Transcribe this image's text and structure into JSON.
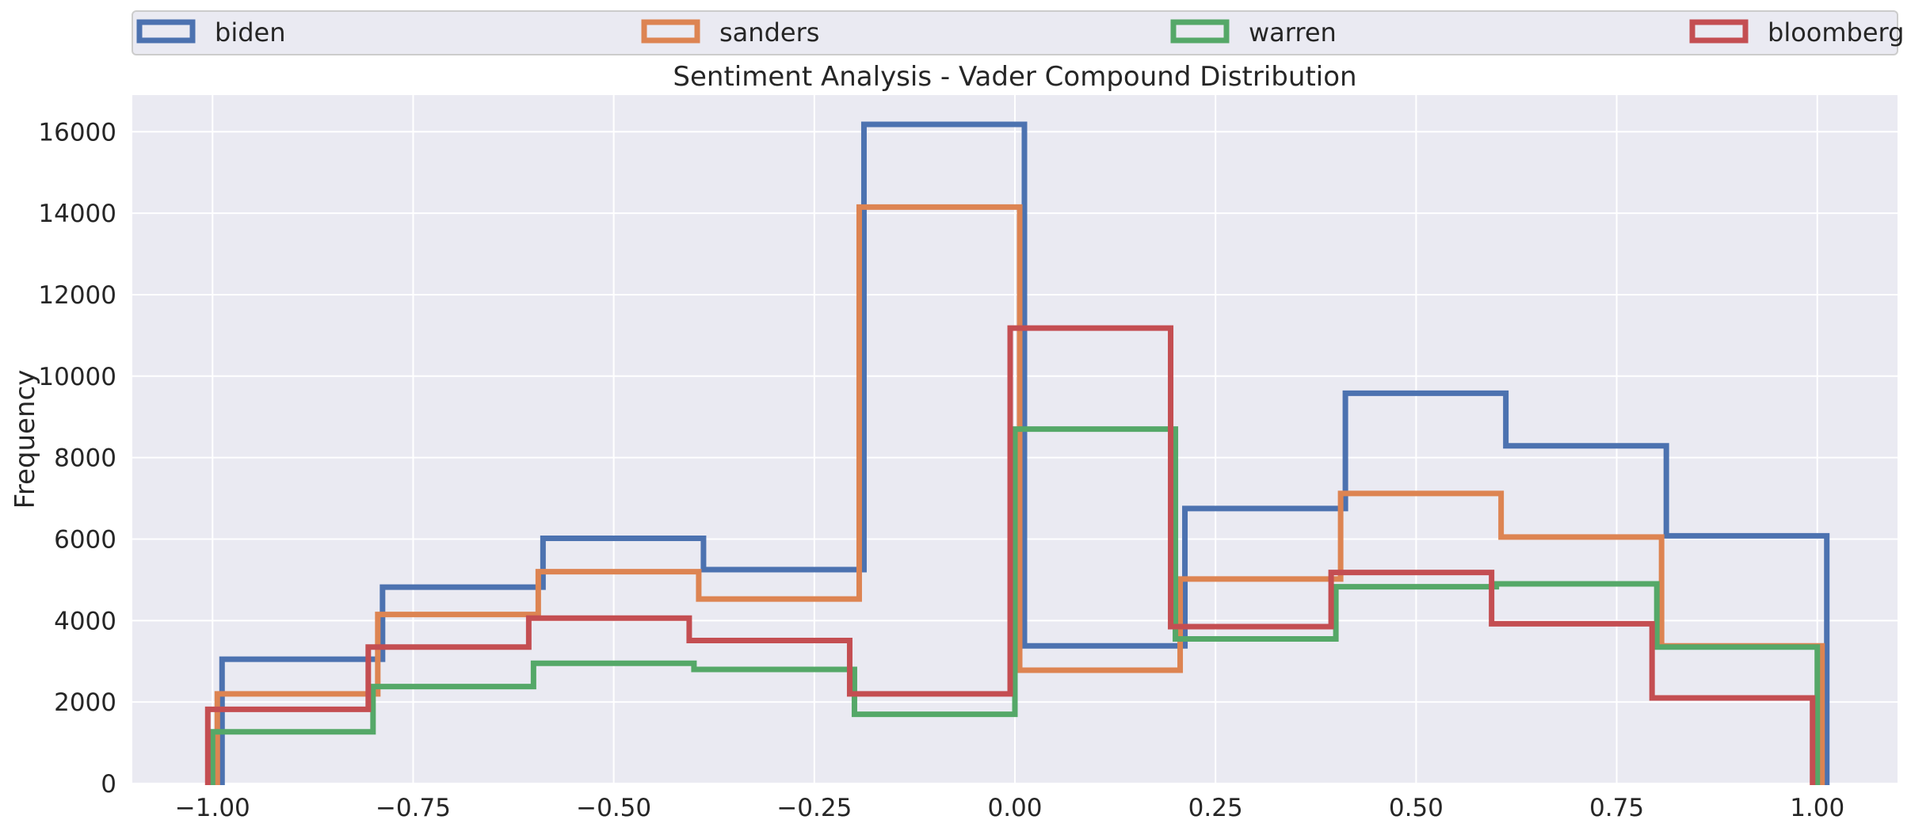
{
  "chart_data": {
    "type": "histogram-step",
    "title": "Sentiment Analysis - Vader Compound Distribution",
    "xlabel": "",
    "ylabel": "Frequency",
    "xlim": [
      -1.1,
      1.1
    ],
    "ylim": [
      0,
      16900
    ],
    "xticks": [
      -1.0,
      -0.75,
      -0.5,
      -0.25,
      0.0,
      0.25,
      0.5,
      0.75,
      1.0
    ],
    "xtick_labels": [
      "−1.00",
      "−0.75",
      "−0.50",
      "−0.25",
      "0.00",
      "0.25",
      "0.50",
      "0.75",
      "1.00"
    ],
    "yticks": [
      0,
      2000,
      4000,
      6000,
      8000,
      10000,
      12000,
      14000,
      16000
    ],
    "ytick_labels": [
      "0",
      "2000",
      "4000",
      "6000",
      "8000",
      "10000",
      "12000",
      "14000",
      "16000"
    ],
    "bin_edges": [
      -1.0,
      -0.8,
      -0.6,
      -0.4,
      -0.2,
      0.0,
      0.2,
      0.4,
      0.6,
      0.8,
      1.0
    ],
    "grid": true,
    "legend_position": "top, above plot",
    "series": [
      {
        "name": "biden",
        "color": "#4c72b0",
        "values": [
          3050,
          4820,
          6020,
          5250,
          16180,
          3380,
          6750,
          9580,
          8290,
          6080
        ]
      },
      {
        "name": "sanders",
        "color": "#dd8452",
        "values": [
          2200,
          4150,
          5200,
          4530,
          14150,
          2780,
          5020,
          7120,
          6050,
          3380
        ]
      },
      {
        "name": "warren",
        "color": "#55a868",
        "values": [
          1270,
          2380,
          2950,
          2800,
          1700,
          8700,
          3550,
          4830,
          4900,
          3350
        ]
      },
      {
        "name": "bloomberg",
        "color": "#c44e52",
        "values": [
          1820,
          3350,
          4060,
          3510,
          2200,
          11180,
          3850,
          5180,
          3920,
          2100
        ]
      }
    ]
  }
}
